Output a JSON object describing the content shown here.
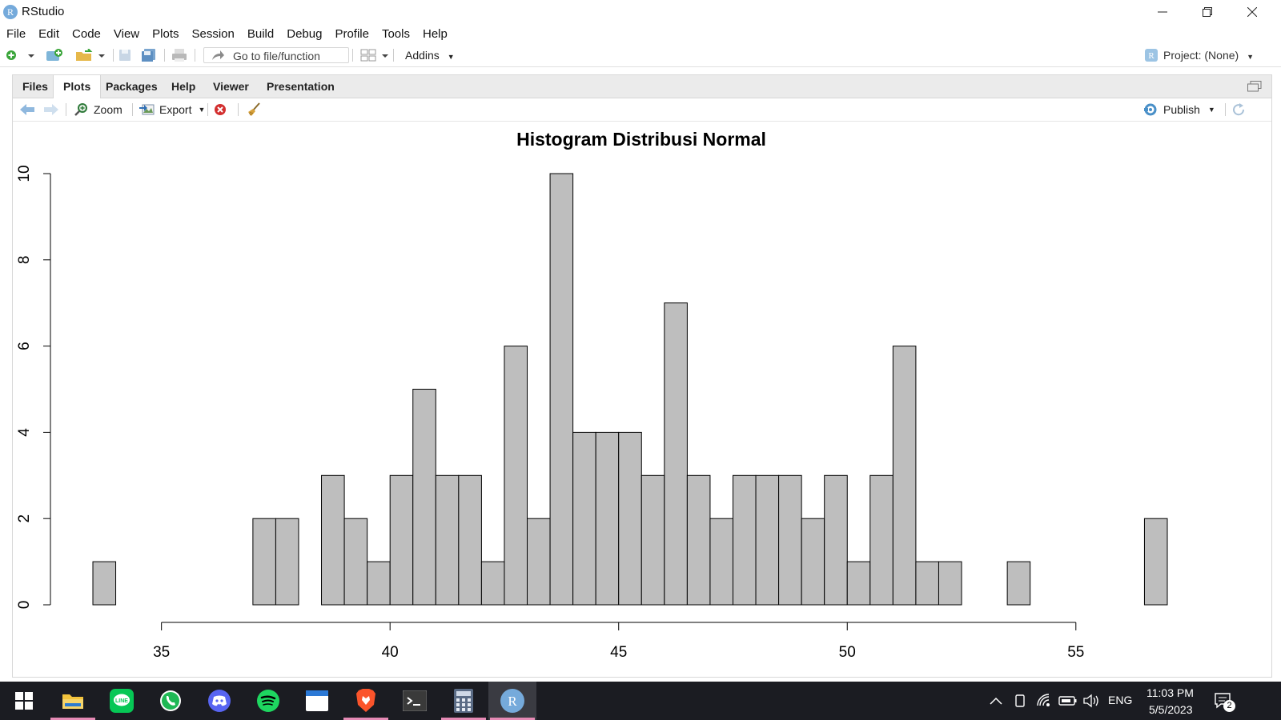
{
  "window": {
    "title": "RStudio",
    "logo_letter": "R"
  },
  "menu": [
    "File",
    "Edit",
    "Code",
    "View",
    "Plots",
    "Session",
    "Build",
    "Debug",
    "Profile",
    "Tools",
    "Help"
  ],
  "toolbar": {
    "goto_placeholder": "Go to file/function",
    "addins_label": "Addins",
    "project_label": "Project: (None)"
  },
  "pane": {
    "tabs": [
      "Files",
      "Plots",
      "Packages",
      "Help",
      "Viewer",
      "Presentation"
    ],
    "active_tab": "Plots",
    "zoom_label": "Zoom",
    "export_label": "Export",
    "publish_label": "Publish"
  },
  "chart_data": {
    "type": "bar",
    "title": "Histogram Distribusi Normal",
    "xlabel": "",
    "ylabel": "",
    "bar_fill": "#bebebe",
    "bins": [
      {
        "x0": 33.5,
        "x1": 34.0,
        "count": 1
      },
      {
        "x0": 37.0,
        "x1": 37.5,
        "count": 2
      },
      {
        "x0": 37.5,
        "x1": 38.0,
        "count": 2
      },
      {
        "x0": 38.0,
        "x1": 38.5,
        "count": 0
      },
      {
        "x0": 38.5,
        "x1": 39.0,
        "count": 3
      },
      {
        "x0": 39.0,
        "x1": 39.5,
        "count": 2
      },
      {
        "x0": 39.5,
        "x1": 40.0,
        "count": 1
      },
      {
        "x0": 40.0,
        "x1": 40.5,
        "count": 3
      },
      {
        "x0": 40.5,
        "x1": 41.0,
        "count": 5
      },
      {
        "x0": 41.0,
        "x1": 41.5,
        "count": 3
      },
      {
        "x0": 41.5,
        "x1": 42.0,
        "count": 3
      },
      {
        "x0": 42.0,
        "x1": 42.5,
        "count": 1
      },
      {
        "x0": 42.5,
        "x1": 43.0,
        "count": 6
      },
      {
        "x0": 43.0,
        "x1": 43.5,
        "count": 2
      },
      {
        "x0": 43.5,
        "x1": 44.0,
        "count": 10
      },
      {
        "x0": 44.0,
        "x1": 44.5,
        "count": 4
      },
      {
        "x0": 44.5,
        "x1": 45.0,
        "count": 4
      },
      {
        "x0": 45.0,
        "x1": 45.5,
        "count": 4
      },
      {
        "x0": 45.5,
        "x1": 46.0,
        "count": 3
      },
      {
        "x0": 46.0,
        "x1": 46.5,
        "count": 7
      },
      {
        "x0": 46.5,
        "x1": 47.0,
        "count": 3
      },
      {
        "x0": 47.0,
        "x1": 47.5,
        "count": 2
      },
      {
        "x0": 47.5,
        "x1": 48.0,
        "count": 3
      },
      {
        "x0": 48.0,
        "x1": 48.5,
        "count": 3
      },
      {
        "x0": 48.5,
        "x1": 49.0,
        "count": 3
      },
      {
        "x0": 49.0,
        "x1": 49.5,
        "count": 2
      },
      {
        "x0": 49.5,
        "x1": 50.0,
        "count": 3
      },
      {
        "x0": 50.0,
        "x1": 50.5,
        "count": 1
      },
      {
        "x0": 50.5,
        "x1": 51.0,
        "count": 3
      },
      {
        "x0": 51.0,
        "x1": 51.5,
        "count": 6
      },
      {
        "x0": 51.5,
        "x1": 52.0,
        "count": 1
      },
      {
        "x0": 52.0,
        "x1": 52.5,
        "count": 1
      },
      {
        "x0": 53.5,
        "x1": 54.0,
        "count": 1
      },
      {
        "x0": 56.5,
        "x1": 57.0,
        "count": 2
      }
    ],
    "xlim": [
      33.5,
      57
    ],
    "xaxis_range": [
      35,
      55
    ],
    "xticks": [
      35,
      40,
      45,
      50,
      55
    ],
    "ylim": [
      0,
      10
    ],
    "yticks": [
      0,
      2,
      4,
      6,
      8,
      10
    ],
    "grid": false,
    "legend": "none"
  },
  "taskbar": {
    "apps": [
      "file-explorer-icon",
      "line-icon",
      "whatsapp-icon",
      "discord-icon",
      "spotify-icon",
      "notepad-icon",
      "brave-icon",
      "terminal-icon",
      "calculator-icon",
      "rstudio-icon"
    ],
    "language": "ENG",
    "time": "11:03 PM",
    "date": "5/5/2023",
    "notification_count": "2"
  }
}
